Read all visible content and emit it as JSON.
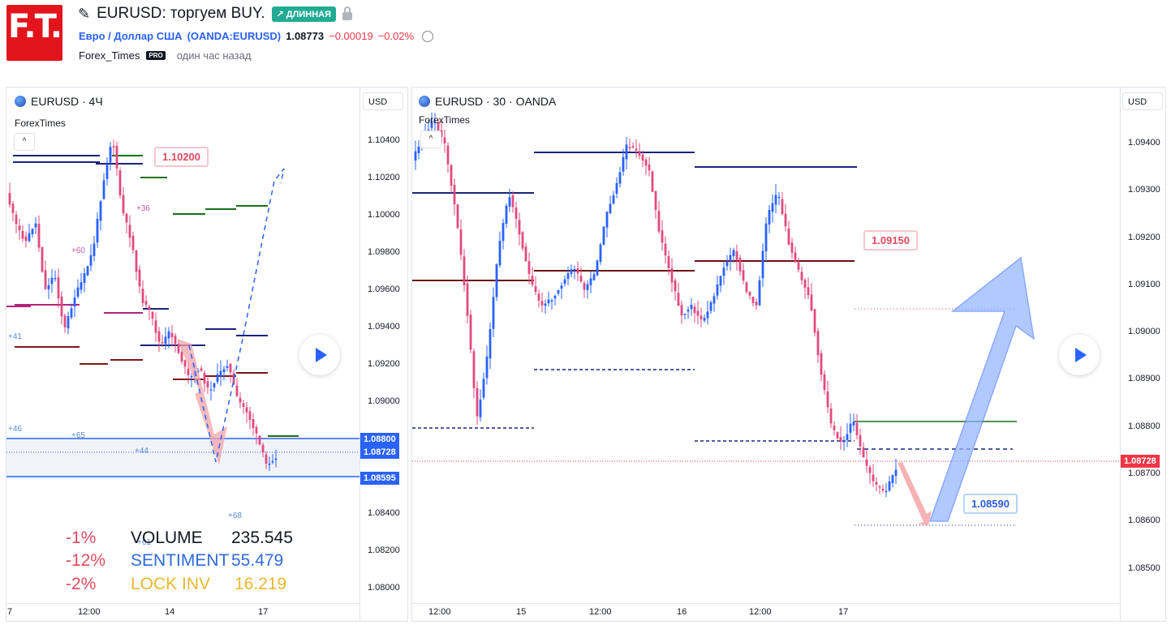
{
  "header": {
    "logo_text": "F.T.",
    "title": "EURUSD: торгуем BUY.",
    "badge": "↗ ДЛИННАЯ",
    "symbol_name": "Евро / Доллар США",
    "symbol_code": "(OANDA:EURUSD)",
    "price": "1.08773",
    "change": "−0.00019",
    "change_pct": "−0.02%",
    "author": "Forex_Times",
    "pro_badge": "PRO",
    "time_ago": "один час назад"
  },
  "left_chart": {
    "title": "EURUSD · 4Ч",
    "indicator": "ForexTimes",
    "currency": "USD",
    "y_ticks": [
      "1.10400",
      "1.10200",
      "1.10000",
      "1.09800",
      "1.09600",
      "1.09400",
      "1.09200",
      "1.09000",
      "1.08400",
      "1.08200",
      "1.08000"
    ],
    "price_tags": [
      "1.08800",
      "1.08728",
      "1.08595"
    ],
    "x_ticks": [
      "7",
      "12:00",
      "14",
      "12:00",
      "17"
    ],
    "callout": "1.10200",
    "side_labels": [
      "+36",
      "+60",
      "+41",
      "+46",
      "+65",
      "+44",
      "+68",
      "+61"
    ],
    "stats": [
      {
        "pct": "-1%",
        "label": "VOLUME",
        "value": "235.545",
        "color": "#131722"
      },
      {
        "pct": "-12%",
        "label": "SENTIMENT",
        "value": "55.479",
        "color": "#2f6bdc"
      },
      {
        "pct": "-2%",
        "label": "LOCK INV",
        "value": "16.219",
        "color": "#e8b732"
      }
    ],
    "colors": {
      "bull": "#2962ff",
      "bear": "#e04a7f",
      "level_green": "#1b6e1b",
      "level_navy": "#1a237e",
      "level_maroon": "#7b1a1a",
      "level_magenta": "#b4237a"
    }
  },
  "right_chart": {
    "title": "EURUSD · 30 · OANDA",
    "indicator": "ForexTimes",
    "currency": "USD",
    "y_ticks": [
      "1.09400",
      "1.09300",
      "1.09200",
      "1.09100",
      "1.09000",
      "1.08900",
      "1.08800",
      "1.08700",
      "1.08600",
      "1.08500"
    ],
    "price_tag": "1.08728",
    "x_ticks": [
      "12:00",
      "15",
      "12:00",
      "16",
      "12:00",
      "17"
    ],
    "callouts": [
      "1.09150",
      "1.08590"
    ],
    "colors": {
      "bull": "#2962ff",
      "bear": "#e04a7f",
      "arrow_up": "#8fb3ff",
      "arrow_down": "#f6a3a8"
    }
  }
}
